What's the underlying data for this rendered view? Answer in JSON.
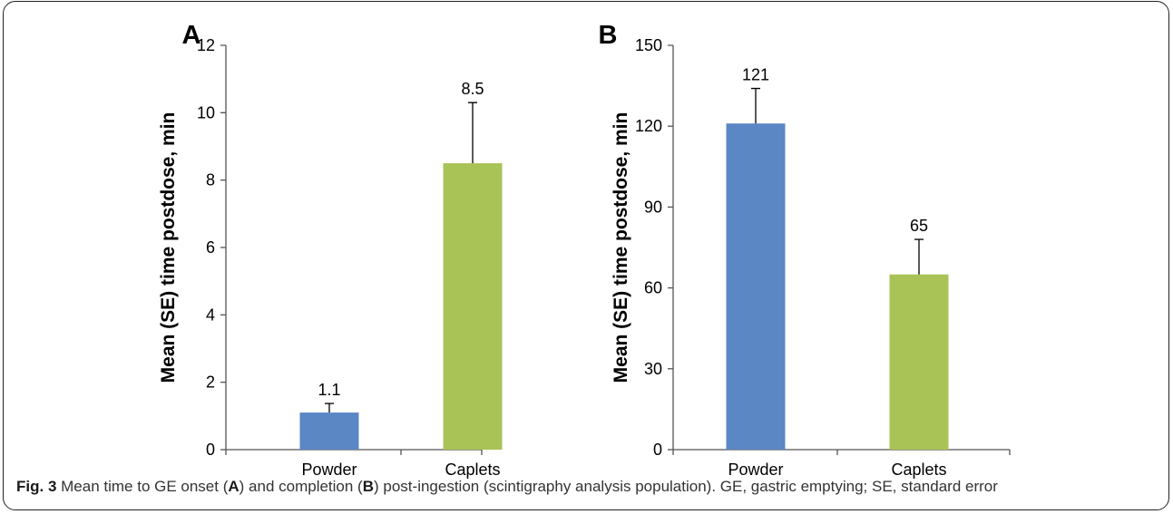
{
  "chart_data": [
    {
      "type": "bar",
      "panel_label": "A",
      "categories": [
        "Powder",
        "Caplets"
      ],
      "values": [
        1.1,
        8.5
      ],
      "errors": [
        0.27,
        1.8
      ],
      "value_labels": [
        "1.1",
        "8.5"
      ],
      "ylabel": "Mean (SE) time postdose, min",
      "ylim": [
        0,
        12
      ],
      "yticks": [
        0,
        2,
        4,
        6,
        8,
        10,
        12
      ],
      "colors": [
        "#5b87c5",
        "#a9c356"
      ],
      "grid": false
    },
    {
      "type": "bar",
      "panel_label": "B",
      "categories": [
        "Powder",
        "Caplets"
      ],
      "values": [
        121,
        65
      ],
      "errors": [
        13,
        13
      ],
      "value_labels": [
        "121",
        "65"
      ],
      "ylabel": "Mean (SE) time postdose, min",
      "ylim": [
        0,
        150
      ],
      "yticks": [
        0,
        30,
        60,
        90,
        120,
        150
      ],
      "colors": [
        "#5b87c5",
        "#a9c356"
      ],
      "grid": false
    }
  ],
  "caption": {
    "fig_label": "Fig. 3",
    "parts": [
      " Mean time to GE onset (",
      "A",
      ") and completion (",
      "B",
      ") post-ingestion (scintigraphy analysis population). GE, gastric emptying; SE, standard error"
    ]
  }
}
